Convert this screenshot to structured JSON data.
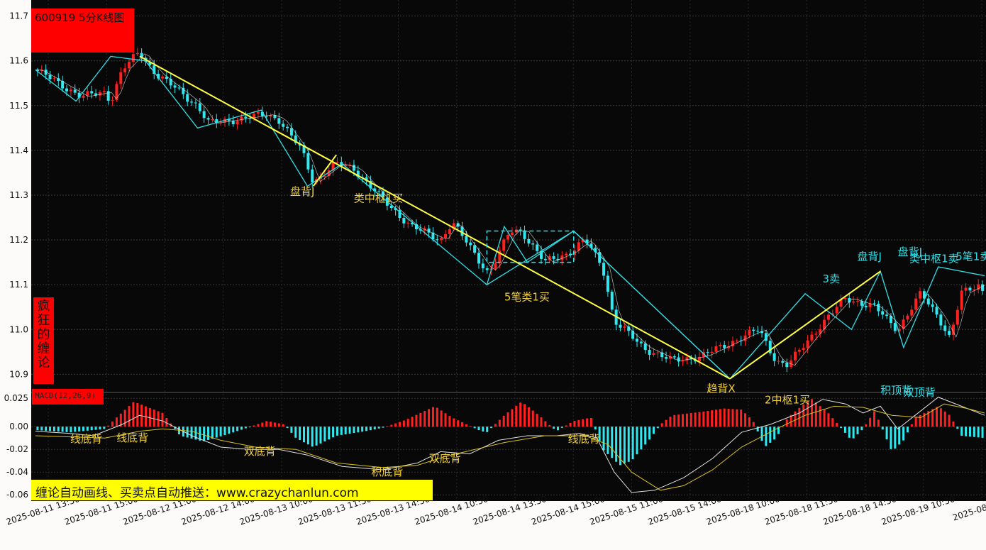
{
  "title": "600919 5分K线图",
  "side_label": "疯狂的缠论",
  "side_chars": [
    "疯",
    "狂",
    "的",
    "缠",
    "论"
  ],
  "macd_label": "MACD(12,26,9)",
  "promo": "缠论自动画线、买卖点自动推送：www.crazychanlun.com",
  "colors": {
    "up": "#ff2020",
    "down": "#30e8f0",
    "yellow": "#ffff40",
    "cyan": "#30e0e8",
    "white": "#e0e0e0",
    "bg": "#080808"
  },
  "chart_data": [
    {
      "type": "candlestick",
      "title": "600919 5分K线图",
      "y_ticks": [
        "11.7",
        "11.6",
        "11.5",
        "11.4",
        "11.3",
        "11.2",
        "11.1",
        "11.0",
        "10.9"
      ],
      "ylim": [
        10.88,
        11.72
      ],
      "x_ticks": [
        "2025-08-11 13:30",
        "2025-08-11 15:00",
        "2025-08-12 11:00",
        "2025-08-12 14:00",
        "2025-08-13 10:00",
        "2025-08-13 11:30",
        "2025-08-13 14:30",
        "2025-08-14 10:30",
        "2025-08-14 13:30",
        "2025-08-14 15:00",
        "2025-08-15 11:00",
        "2025-08-15 14:00",
        "2025-08-18 10:00",
        "2025-08-18 11:30",
        "2025-08-18 14:30",
        "2025-08-19 10:30",
        "2025-08-19"
      ],
      "x_range": [
        0,
        164
      ],
      "price_path": [
        [
          0,
          11.58
        ],
        [
          8,
          11.52
        ],
        [
          12,
          11.53
        ],
        [
          13,
          11.51
        ],
        [
          15,
          11.58
        ],
        [
          18,
          11.62
        ],
        [
          19,
          11.6
        ],
        [
          21,
          11.57
        ],
        [
          28,
          11.5
        ],
        [
          30,
          11.46
        ],
        [
          35,
          11.47
        ],
        [
          40,
          11.48
        ],
        [
          42,
          11.47
        ],
        [
          46,
          11.4
        ],
        [
          48,
          11.33
        ],
        [
          52,
          11.37
        ],
        [
          55,
          11.36
        ],
        [
          60,
          11.29
        ],
        [
          65,
          11.23
        ],
        [
          70,
          11.2
        ],
        [
          72,
          11.24
        ],
        [
          78,
          11.13
        ],
        [
          79,
          11.14
        ],
        [
          82,
          11.22
        ],
        [
          84,
          11.22
        ],
        [
          88,
          11.15
        ],
        [
          92,
          11.17
        ],
        [
          95,
          11.2
        ],
        [
          98,
          11.14
        ],
        [
          100,
          11.02
        ],
        [
          105,
          10.96
        ],
        [
          110,
          10.93
        ],
        [
          115,
          10.94
        ],
        [
          120,
          10.97
        ],
        [
          125,
          11.0
        ],
        [
          128,
          10.93
        ],
        [
          130,
          10.92
        ],
        [
          135,
          11.0
        ],
        [
          140,
          11.07
        ],
        [
          145,
          11.05
        ],
        [
          149,
          11.0
        ],
        [
          153,
          11.08
        ],
        [
          156,
          11.03
        ],
        [
          158,
          10.98
        ],
        [
          160,
          11.08
        ],
        [
          163,
          11.1
        ],
        [
          164,
          11.08
        ]
      ],
      "yellow_lines": [
        [
          [
            18,
            11.61
          ],
          [
            120,
            10.89
          ]
        ],
        [
          [
            120,
            10.89
          ],
          [
            146,
            11.13
          ]
        ],
        [
          [
            48,
            11.32
          ],
          [
            52,
            11.39
          ]
        ]
      ],
      "cyan_lines": [
        [
          [
            0,
            11.58
          ],
          [
            7,
            11.51
          ],
          [
            13,
            11.61
          ],
          [
            19,
            11.6
          ],
          [
            28,
            11.45
          ],
          [
            39,
            11.49
          ],
          [
            47,
            11.32
          ],
          [
            53,
            11.37
          ],
          [
            78,
            11.1
          ],
          [
            81,
            11.23
          ],
          [
            85,
            11.15
          ],
          [
            93,
            11.22
          ],
          [
            120,
            10.89
          ],
          [
            133,
            11.08
          ],
          [
            141,
            11.0
          ],
          [
            146,
            11.13
          ],
          [
            150,
            10.96
          ],
          [
            156,
            11.14
          ],
          [
            164,
            11.12
          ]
        ],
        [
          [
            78,
            11.1
          ],
          [
            93,
            11.22
          ],
          [
            120,
            10.89
          ]
        ]
      ],
      "box_dashed": {
        "x0": 78,
        "x1": 93,
        "y0": 11.15,
        "y1": 11.22
      },
      "annotations": [
        {
          "text": "盘背J",
          "color": "yellow",
          "x": 44,
          "y": 11.3
        },
        {
          "text": "类中枢1买",
          "color": "yellow",
          "x": 55,
          "y": 11.285
        },
        {
          "text": "5笔类1买",
          "color": "yellow",
          "x": 81,
          "y": 11.065
        },
        {
          "text": "趋背X",
          "color": "yellow",
          "x": 116,
          "y": 10.86
        },
        {
          "text": "2中枢1买",
          "color": "yellow",
          "x": 126,
          "y": 10.835
        },
        {
          "text": "3卖",
          "color": "cyan",
          "x": 136,
          "y": 11.105
        },
        {
          "text": "盘背J",
          "color": "cyan",
          "x": 142,
          "y": 11.155
        },
        {
          "text": "盘背J",
          "color": "cyan",
          "x": 149,
          "y": 11.165
        },
        {
          "text": "类中枢1卖",
          "color": "cyan",
          "x": 151,
          "y": 11.15
        },
        {
          "text": "5笔1卖",
          "color": "cyan",
          "x": 159,
          "y": 11.155
        }
      ]
    },
    {
      "type": "bar",
      "title": "MACD(12,26,9)",
      "y_ticks": [
        "0.025",
        "0.00",
        "-0.02",
        "-0.04",
        "-0.06"
      ],
      "ylim": [
        -0.063,
        0.027
      ],
      "x_range": [
        0,
        164
      ],
      "hist_path": [
        [
          0,
          -0.003
        ],
        [
          6,
          -0.005
        ],
        [
          12,
          -0.002
        ],
        [
          14,
          0.008
        ],
        [
          17,
          0.022
        ],
        [
          22,
          0.012
        ],
        [
          25,
          -0.008
        ],
        [
          29,
          -0.013
        ],
        [
          33,
          -0.007
        ],
        [
          36,
          -0.002
        ],
        [
          40,
          0.005
        ],
        [
          43,
          0.002
        ],
        [
          45,
          -0.01
        ],
        [
          48,
          -0.018
        ],
        [
          52,
          -0.008
        ],
        [
          57,
          -0.004
        ],
        [
          60,
          -0.001
        ],
        [
          64,
          0.006
        ],
        [
          69,
          0.018
        ],
        [
          72,
          0.008
        ],
        [
          77,
          -0.004
        ],
        [
          78,
          -0.005
        ],
        [
          81,
          0.01
        ],
        [
          84,
          0.022
        ],
        [
          87,
          0.01
        ],
        [
          90,
          -0.004
        ],
        [
          93,
          0.005
        ],
        [
          96,
          0.008
        ],
        [
          98,
          -0.02
        ],
        [
          101,
          -0.034
        ],
        [
          103,
          -0.03
        ],
        [
          106,
          -0.012
        ],
        [
          108,
          0.002
        ],
        [
          110,
          0.01
        ],
        [
          115,
          0.013
        ],
        [
          119,
          0.016
        ],
        [
          122,
          0.015
        ],
        [
          124,
          0.005
        ],
        [
          126,
          -0.018
        ],
        [
          128,
          -0.01
        ],
        [
          130,
          0.008
        ],
        [
          134,
          0.025
        ],
        [
          137,
          0.012
        ],
        [
          141,
          -0.012
        ],
        [
          143,
          -0.002
        ],
        [
          145,
          0.014
        ],
        [
          148,
          -0.022
        ],
        [
          150,
          -0.012
        ],
        [
          152,
          0.008
        ],
        [
          156,
          0.018
        ],
        [
          158,
          0.01
        ],
        [
          160,
          -0.008
        ],
        [
          164,
          -0.01
        ]
      ],
      "dif_path": [
        [
          0,
          -0.004
        ],
        [
          6,
          -0.006
        ],
        [
          10,
          -0.008
        ],
        [
          15,
          0.002
        ],
        [
          18,
          0.01
        ],
        [
          22,
          0.005
        ],
        [
          27,
          -0.008
        ],
        [
          32,
          -0.018
        ],
        [
          37,
          -0.02
        ],
        [
          42,
          -0.02
        ],
        [
          47,
          -0.025
        ],
        [
          53,
          -0.035
        ],
        [
          60,
          -0.038
        ],
        [
          66,
          -0.032
        ],
        [
          70,
          -0.022
        ],
        [
          75,
          -0.024
        ],
        [
          80,
          -0.012
        ],
        [
          85,
          -0.008
        ],
        [
          90,
          -0.008
        ],
        [
          94,
          -0.006
        ],
        [
          97,
          -0.01
        ],
        [
          100,
          -0.04
        ],
        [
          103,
          -0.058
        ],
        [
          107,
          -0.056
        ],
        [
          112,
          -0.045
        ],
        [
          117,
          -0.028
        ],
        [
          122,
          -0.005
        ],
        [
          127,
          0.002
        ],
        [
          132,
          0.012
        ],
        [
          136,
          0.024
        ],
        [
          140,
          0.02
        ],
        [
          143,
          0.012
        ],
        [
          146,
          0.018
        ],
        [
          149,
          -0.002
        ],
        [
          152,
          0.01
        ],
        [
          156,
          0.026
        ],
        [
          160,
          0.018
        ],
        [
          164,
          0.01
        ]
      ],
      "dea_path": [
        [
          0,
          -0.008
        ],
        [
          6,
          -0.009
        ],
        [
          12,
          -0.01
        ],
        [
          18,
          -0.004
        ],
        [
          22,
          -0.002
        ],
        [
          27,
          -0.004
        ],
        [
          32,
          -0.012
        ],
        [
          38,
          -0.018
        ],
        [
          45,
          -0.02
        ],
        [
          52,
          -0.032
        ],
        [
          60,
          -0.036
        ],
        [
          66,
          -0.034
        ],
        [
          71,
          -0.026
        ],
        [
          76,
          -0.02
        ],
        [
          81,
          -0.014
        ],
        [
          88,
          -0.008
        ],
        [
          95,
          -0.008
        ],
        [
          99,
          -0.016
        ],
        [
          103,
          -0.04
        ],
        [
          108,
          -0.056
        ],
        [
          112,
          -0.052
        ],
        [
          117,
          -0.038
        ],
        [
          122,
          -0.018
        ],
        [
          128,
          -0.002
        ],
        [
          133,
          0.01
        ],
        [
          138,
          0.018
        ],
        [
          143,
          0.017
        ],
        [
          148,
          0.01
        ],
        [
          153,
          0.008
        ],
        [
          157,
          0.02
        ],
        [
          161,
          0.016
        ],
        [
          164,
          0.012
        ]
      ],
      "annotations": [
        {
          "text": "线底背",
          "color": "yellow",
          "x": 6,
          "y": -0.014
        },
        {
          "text": "线底背",
          "color": "yellow",
          "x": 14,
          "y": -0.013
        },
        {
          "text": "双底背",
          "color": "yellow",
          "x": 36,
          "y": -0.025
        },
        {
          "text": "积底背",
          "color": "yellow",
          "x": 58,
          "y": -0.043
        },
        {
          "text": "双底背",
          "color": "yellow",
          "x": 68,
          "y": -0.031
        },
        {
          "text": "线底背",
          "color": "yellow",
          "x": 92,
          "y": -0.014
        },
        {
          "text": "积顶背",
          "color": "cyan",
          "x": 146,
          "y": 0.029
        },
        {
          "text": "双顶背",
          "color": "cyan",
          "x": 150,
          "y": 0.027
        }
      ]
    }
  ]
}
